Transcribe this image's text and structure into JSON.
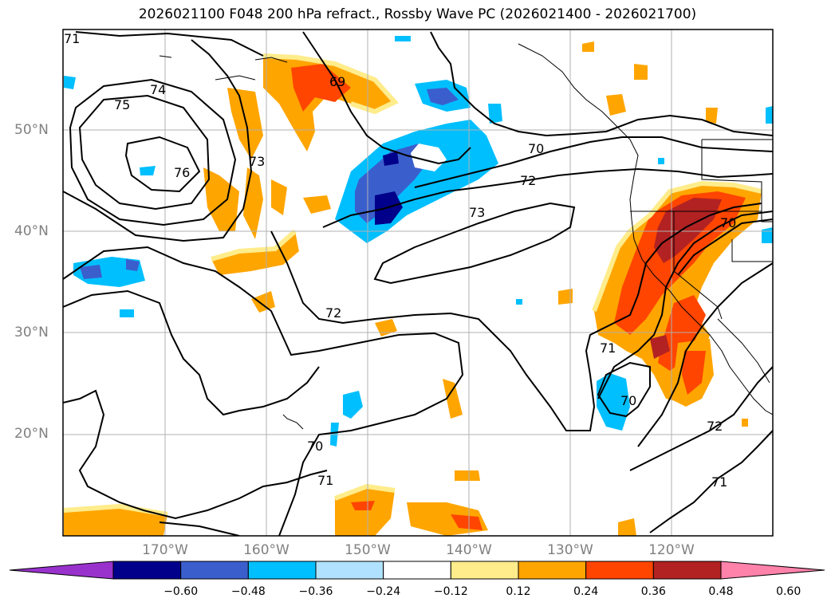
{
  "title": "2026021100 F048 200 hPa refract., Rossby Wave PC (2026021400 - 2026021700)",
  "lat_labels": [
    "50°N",
    "40°N",
    "30°N",
    "20°N"
  ],
  "lon_labels": [
    "170°W",
    "160°W",
    "150°W",
    "140°W",
    "130°W",
    "120°W"
  ],
  "contour_labels": [
    "71",
    "74",
    "75",
    "76",
    "73",
    "69",
    "70",
    "72",
    "73",
    "72",
    "70",
    "71",
    "70",
    "70",
    "71",
    "72",
    "71"
  ],
  "colorbar": {
    "ticks": [
      "−0.60",
      "−0.48",
      "−0.36",
      "−0.24",
      "−0.12",
      "0.12",
      "0.24",
      "0.36",
      "0.48",
      "0.60"
    ],
    "colors": [
      "#9932cc",
      "#00008b",
      "#3a5fcd",
      "#00bfff",
      "#b0e2ff",
      "#ffffff",
      "#ffec8b",
      "#ffa500",
      "#ff4500",
      "#b22222",
      "#ff82ab"
    ]
  }
}
